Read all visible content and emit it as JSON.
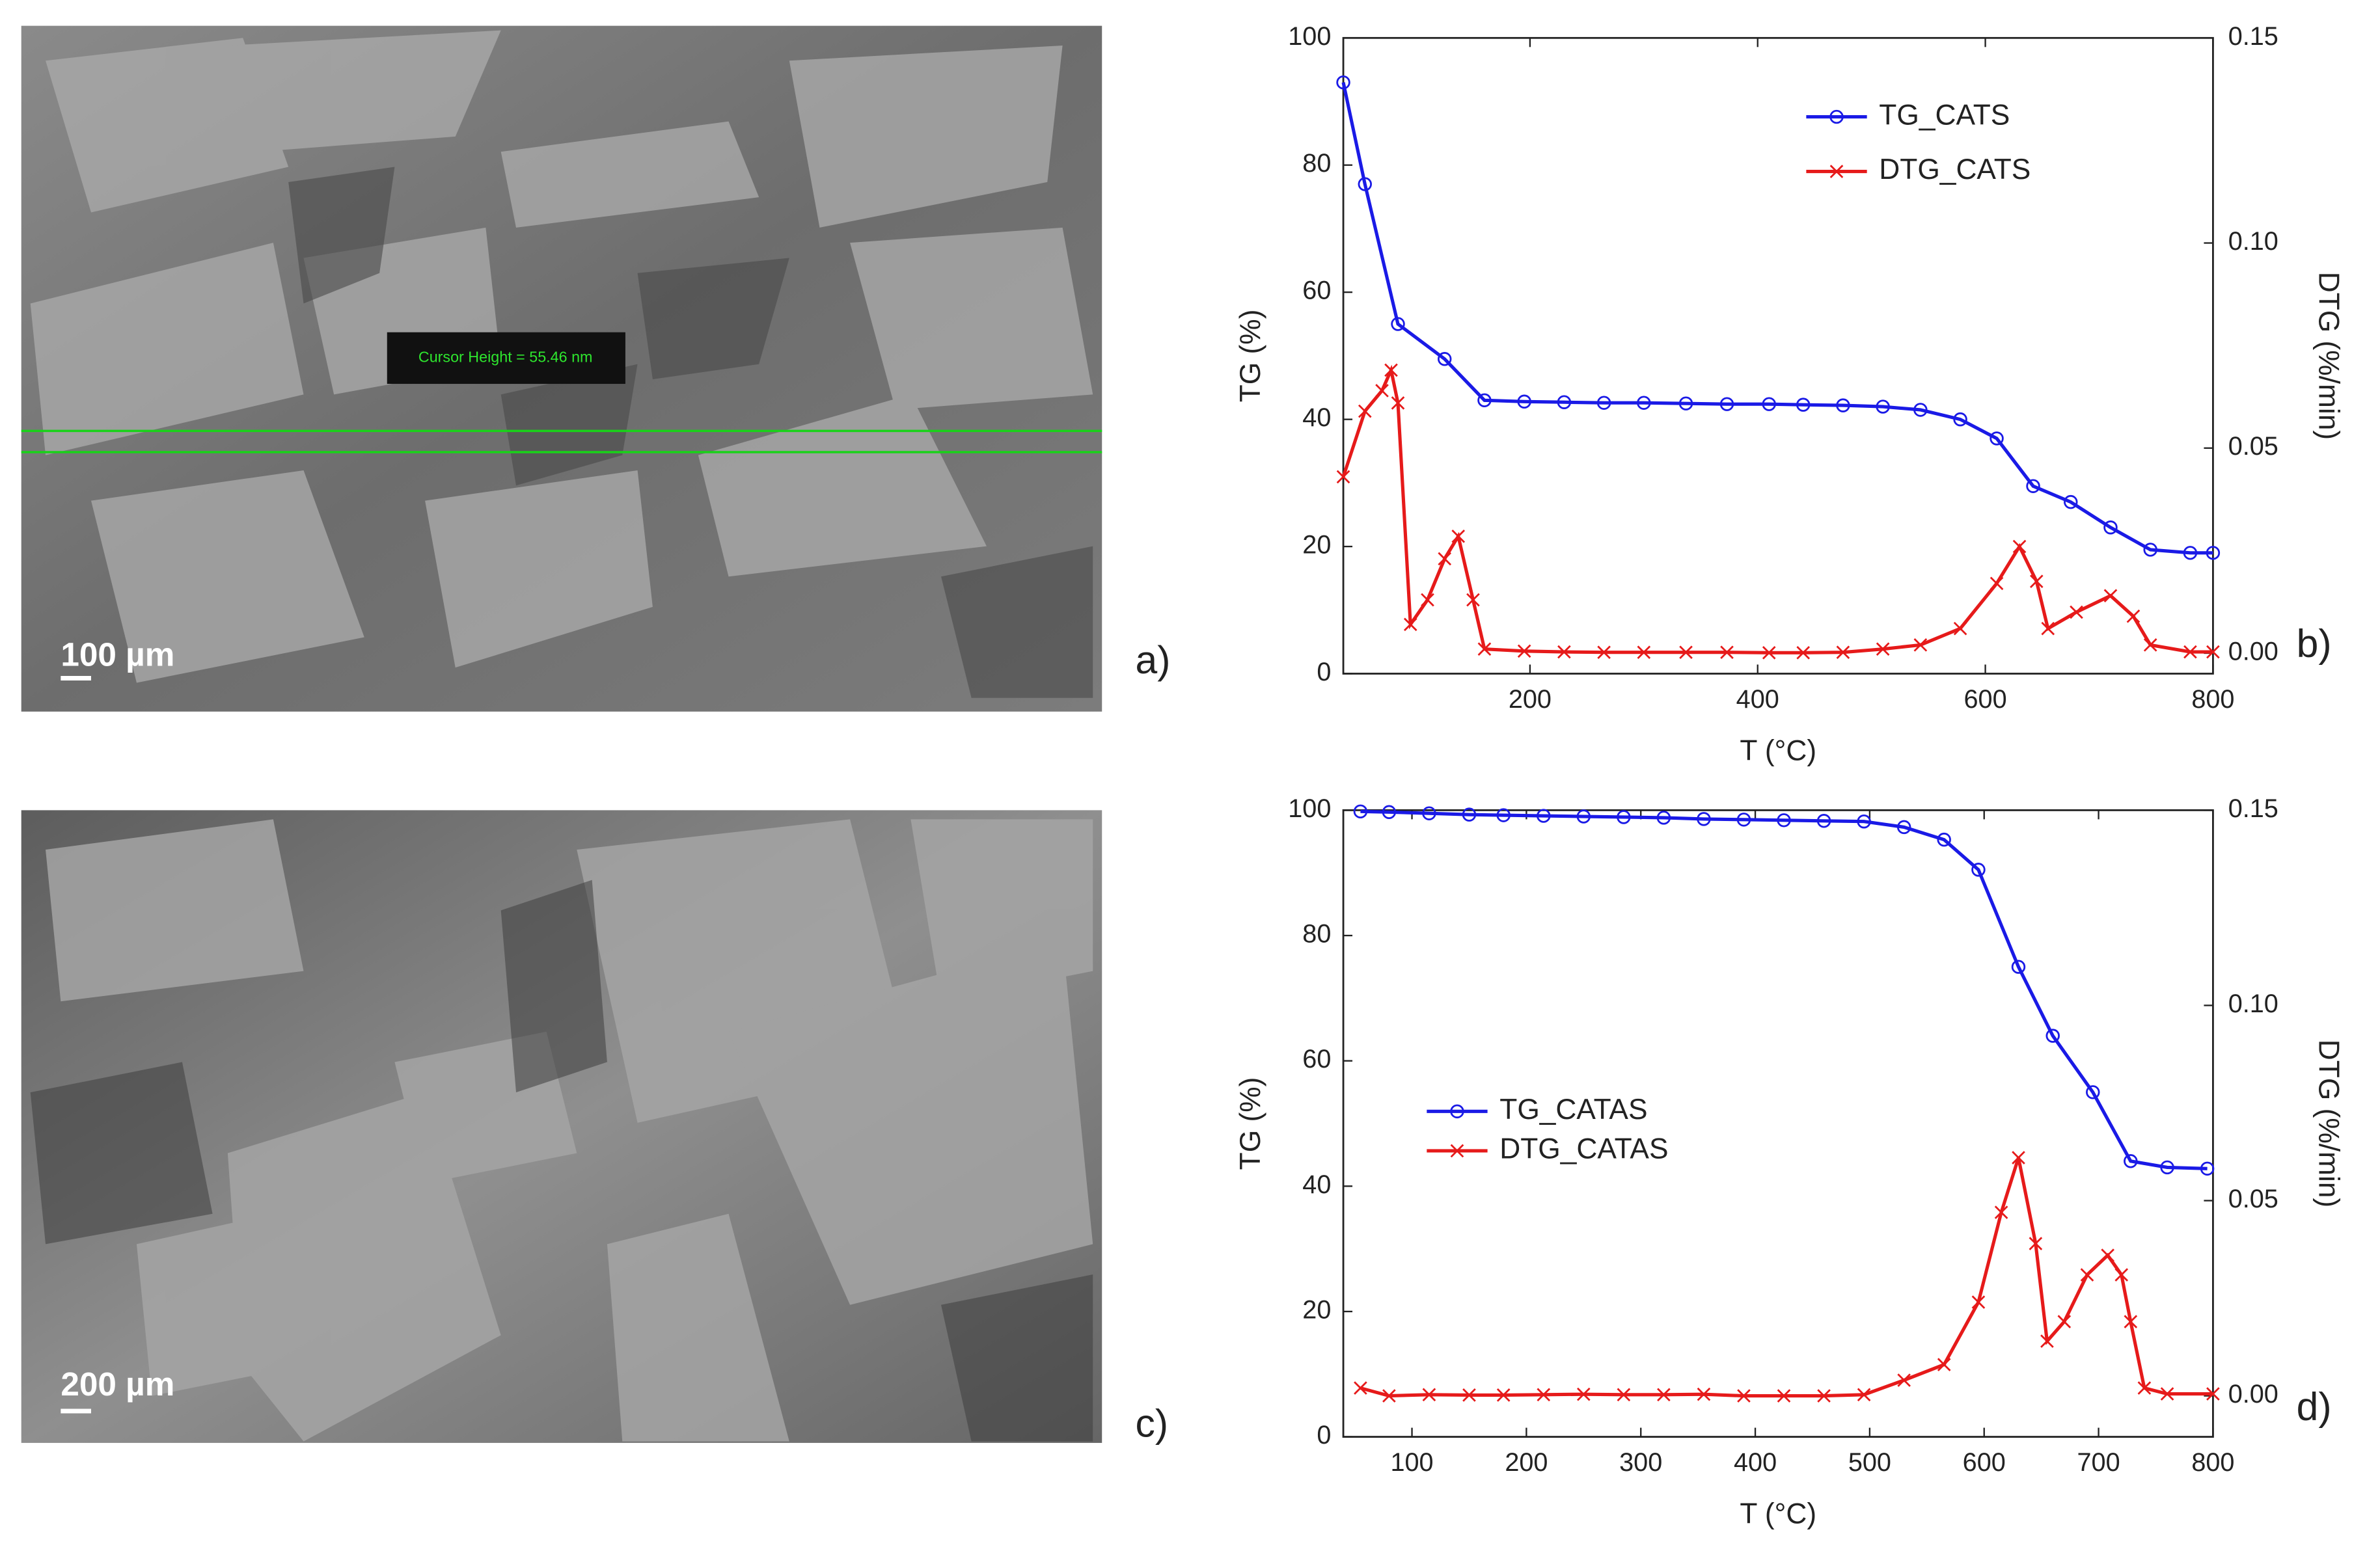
{
  "images": [
    {
      "panel_label": "a)",
      "scale_bar": "100 µm",
      "annotation": "Cursor Height = 55.46 nm"
    },
    {
      "panel_label": "c)",
      "scale_bar": "200 µm"
    }
  ],
  "chart_data": [
    {
      "type": "line",
      "panel_label": "b)",
      "xlabel": "T (°C)",
      "ylabel": "TG (%)",
      "y2label": "DTG (%/min)",
      "legend": "upper right",
      "xlim": [
        36,
        800
      ],
      "xticks": [
        200,
        400,
        600,
        800
      ],
      "ylim": [
        0,
        100
      ],
      "yticks": [
        0,
        20,
        40,
        60,
        80,
        100
      ],
      "y2lim": [
        -0.005,
        0.15
      ],
      "y2ticks": [
        {
          "value": 0,
          "label": "0.00"
        },
        {
          "value": 0.05,
          "label": "0.05"
        },
        {
          "value": 0.1,
          "label": "0.10"
        },
        {
          "value": 0.15,
          "label": "0.15"
        }
      ],
      "series": [
        {
          "name": "TG_CATS",
          "color": "#1a1ae6",
          "marker": "o",
          "x": [
            36,
            55,
            84,
            125,
            160,
            195,
            230,
            265,
            300,
            337,
            373,
            410,
            440,
            475,
            510,
            543,
            578,
            610,
            642,
            675,
            710,
            745,
            780,
            800
          ],
          "values": [
            93,
            77,
            55,
            49.5,
            43,
            42.8,
            42.7,
            42.6,
            42.6,
            42.5,
            42.4,
            42.4,
            42.3,
            42.2,
            42,
            41.5,
            40,
            37,
            29.5,
            27,
            23,
            19.5,
            19,
            19
          ]
        },
        {
          "name": "DTG_CATS",
          "color": "#e61a1a",
          "marker": "x",
          "axis": "y2",
          "x": [
            36,
            55,
            70,
            78,
            84,
            95,
            110,
            125,
            137,
            150,
            160,
            195,
            230,
            265,
            300,
            337,
            373,
            410,
            440,
            475,
            510,
            543,
            578,
            610,
            630,
            645,
            655,
            680,
            710,
            730,
            745,
            780,
            800
          ],
          "values": [
            0.043,
            0.059,
            0.064,
            0.069,
            0.061,
            0.007,
            0.013,
            0.023,
            0.0285,
            0.013,
            0.001,
            0.0005,
            0.0003,
            0.0002,
            0.0002,
            0.0002,
            0.0002,
            0.0001,
            0.0001,
            0.0002,
            0.001,
            0.002,
            0.006,
            0.017,
            0.026,
            0.0175,
            0.006,
            0.01,
            0.014,
            0.009,
            0.002,
            0.0003,
            0.0003
          ]
        }
      ]
    },
    {
      "type": "line",
      "panel_label": "d)",
      "xlabel": "T (°C)",
      "ylabel": "TG (%)",
      "y2label": "DTG (%/min)",
      "legend": "center left",
      "xlim": [
        40,
        800
      ],
      "xticks": [
        100,
        200,
        300,
        400,
        500,
        600,
        700,
        800
      ],
      "ylim": [
        0,
        100
      ],
      "yticks": [
        0,
        20,
        40,
        60,
        80,
        100
      ],
      "y2lim": [
        -0.0105,
        0.15
      ],
      "y2ticks": [
        {
          "value": 0,
          "label": "0.00"
        },
        {
          "value": 0.05,
          "label": "0.05"
        },
        {
          "value": 0.1,
          "label": "0.10"
        },
        {
          "value": 0.15,
          "label": "0.15"
        }
      ],
      "series": [
        {
          "name": "TG_CATAS",
          "color": "#1a1ae6",
          "marker": "o",
          "x": [
            55,
            80,
            115,
            150,
            180,
            215,
            250,
            285,
            320,
            355,
            390,
            425,
            460,
            495,
            530,
            565,
            595,
            630,
            660,
            695,
            728,
            760,
            795
          ],
          "values": [
            99.8,
            99.7,
            99.5,
            99.3,
            99.2,
            99.1,
            99,
            98.9,
            98.8,
            98.6,
            98.5,
            98.4,
            98.3,
            98.2,
            97.3,
            95.3,
            90.5,
            75,
            64,
            55,
            44,
            43,
            42.8
          ]
        },
        {
          "name": "DTG_CATAS",
          "color": "#e61a1a",
          "marker": "x",
          "axis": "y2",
          "x": [
            55,
            80,
            115,
            150,
            180,
            215,
            250,
            285,
            320,
            355,
            390,
            425,
            460,
            495,
            530,
            565,
            595,
            615,
            630,
            645,
            655,
            670,
            690,
            708,
            720,
            728,
            740,
            760,
            800
          ],
          "values": [
            0.002,
            0,
            0.0003,
            0.0002,
            0.0002,
            0.0003,
            0.0004,
            0.0003,
            0.0003,
            0.0004,
            0,
            0,
            0,
            0.0003,
            0.004,
            0.008,
            0.024,
            0.047,
            0.061,
            0.039,
            0.014,
            0.019,
            0.031,
            0.036,
            0.031,
            0.019,
            0.002,
            0.0005,
            0.0005
          ]
        }
      ]
    }
  ]
}
